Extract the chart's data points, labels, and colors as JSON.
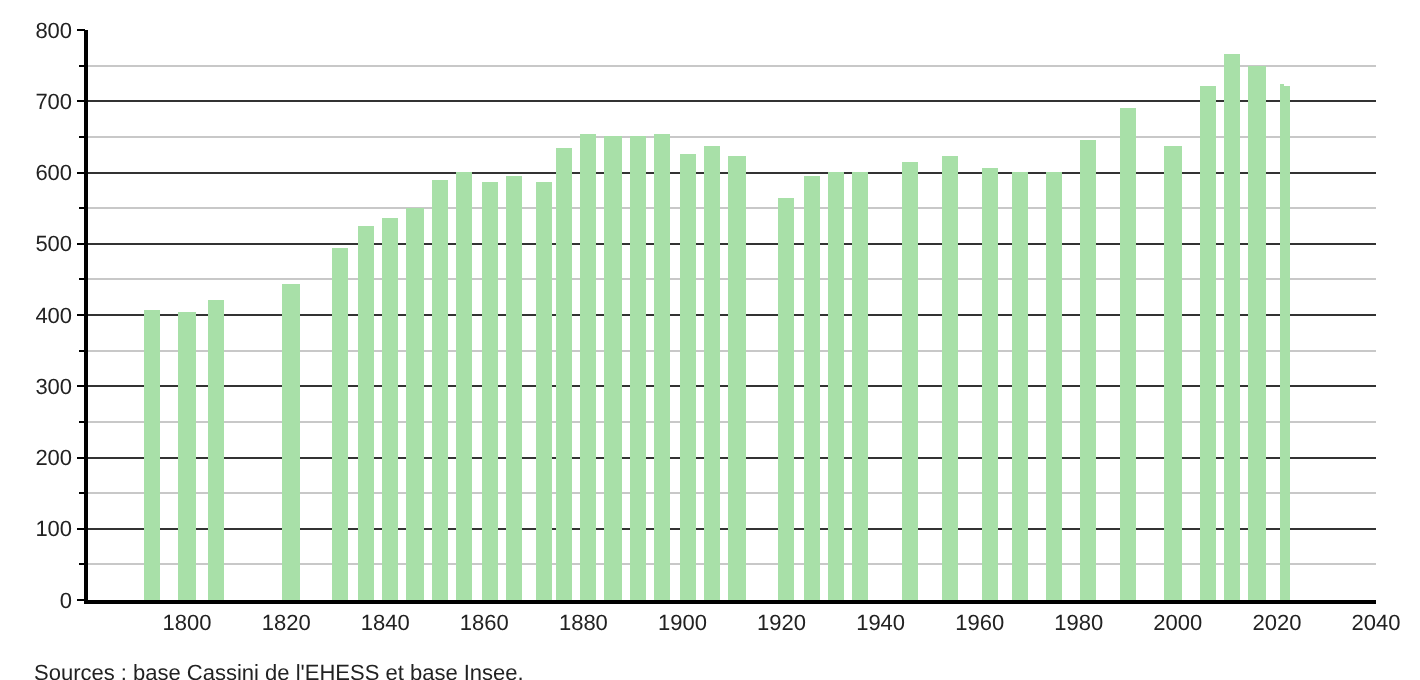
{
  "chart_data": {
    "type": "bar",
    "color": "#a8e0a8",
    "x": [
      1793,
      1800,
      1806,
      1821,
      1831,
      1836,
      1841,
      1846,
      1851,
      1856,
      1861,
      1866,
      1872,
      1876,
      1881,
      1886,
      1891,
      1896,
      1901,
      1906,
      1911,
      1921,
      1926,
      1931,
      1936,
      1946,
      1954,
      1962,
      1968,
      1975,
      1982,
      1990,
      1999,
      2006,
      2011,
      2016,
      2021,
      2022
    ],
    "values": [
      407,
      405,
      421,
      443,
      495,
      526,
      536,
      549,
      589,
      600,
      588,
      596,
      588,
      633,
      653,
      650,
      650,
      655,
      626,
      636,
      622,
      564,
      596,
      600,
      600,
      615,
      623,
      607,
      600,
      600,
      645,
      691,
      636,
      722,
      765,
      749,
      725,
      722
    ],
    "xlim": [
      1780,
      2040
    ],
    "xticks": [
      1800,
      1820,
      1840,
      1860,
      1880,
      1900,
      1920,
      1940,
      1960,
      1980,
      2000,
      2020,
      2040
    ],
    "ylim": [
      0,
      800
    ],
    "yticks": [
      0,
      {
        "value": 50,
        "label": null
      },
      100,
      {
        "value": 150,
        "label": null
      },
      200,
      {
        "value": 250,
        "label": null
      },
      300,
      {
        "value": 350,
        "label": null
      },
      400,
      {
        "value": 450,
        "label": null
      },
      500,
      {
        "value": 550,
        "label": null
      },
      600,
      {
        "value": 650,
        "label": null
      },
      700,
      {
        "value": 750,
        "label": null
      },
      800
    ],
    "grid": "y",
    "annotations": [
      "Sources : base Cassini de l'EHESS et base Insee."
    ]
  }
}
